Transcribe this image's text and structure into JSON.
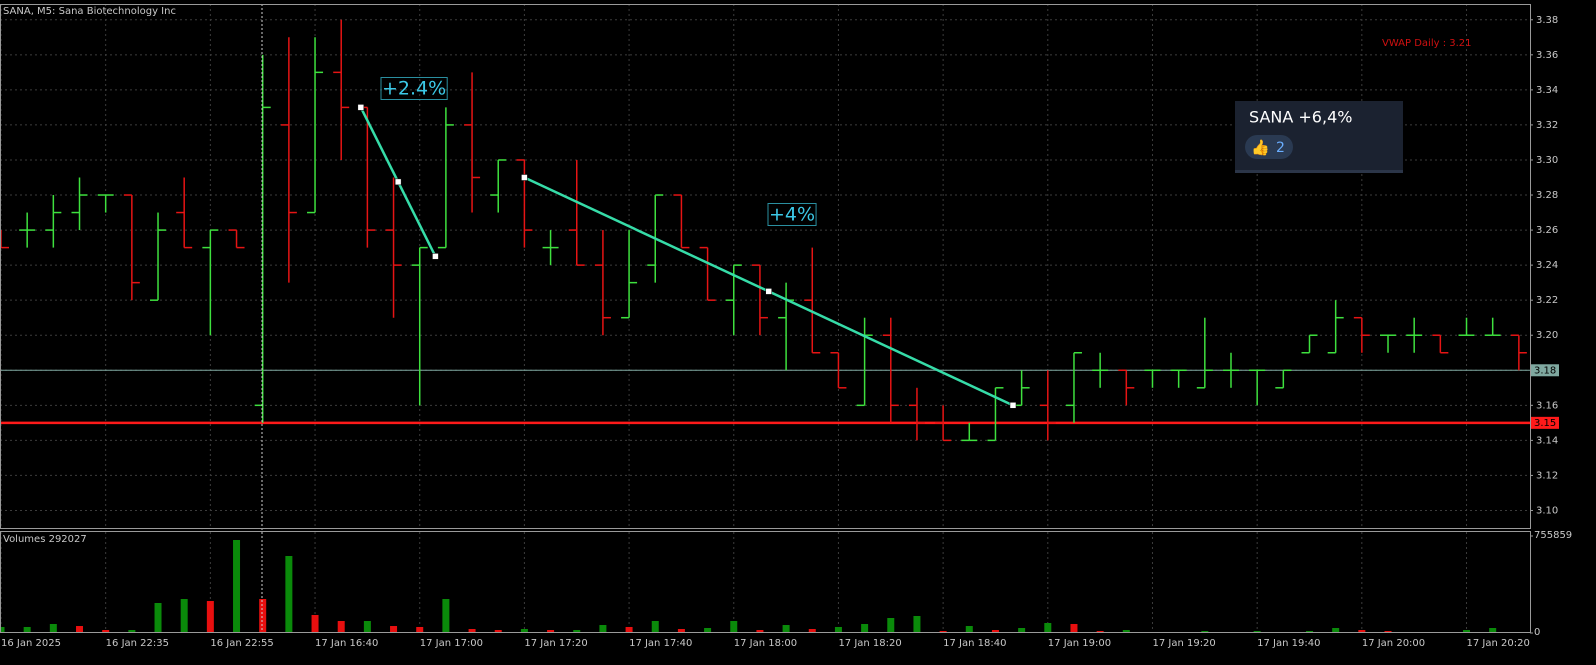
{
  "chart_data": {
    "type": "ohlc",
    "title": "SANA, M5:  Sana Biotechnology Inc",
    "categories": [
      "16 Jan 2025",
      null,
      null,
      null,
      "16 Jan 22:35",
      null,
      null,
      null,
      "16 Jan 22:55",
      null,
      null,
      null,
      "17 Jan 16:40",
      null,
      null,
      null,
      "17 Jan 17:00",
      null,
      null,
      null,
      "17 Jan 17:20",
      null,
      null,
      null,
      "17 Jan 17:40",
      null,
      null,
      null,
      "17 Jan 18:00",
      null,
      null,
      null,
      "17 Jan 18:20",
      null,
      null,
      null,
      "17 Jan 18:40",
      null,
      null,
      null,
      "17 Jan 19:00",
      null,
      null,
      null,
      "17 Jan 19:20",
      null,
      null,
      null,
      "17 Jan 19:40",
      null,
      null,
      null,
      "17 Jan 20:00",
      null,
      null,
      null,
      "17 Jan 20:20",
      null,
      null
    ],
    "open": [
      3.26,
      3.26,
      3.26,
      3.27,
      3.28,
      3.28,
      3.22,
      3.27,
      3.25,
      3.26,
      3.16,
      3.32,
      3.27,
      3.35,
      3.33,
      3.26,
      3.24,
      3.25,
      3.32,
      3.28,
      3.3,
      3.25,
      3.26,
      3.24,
      3.21,
      3.24,
      3.28,
      3.25,
      3.22,
      3.24,
      3.21,
      3.22,
      3.19,
      3.16,
      3.2,
      3.16,
      3.15,
      3.14,
      3.14,
      3.16,
      3.16,
      3.16,
      3.18,
      3.18,
      3.18,
      3.18,
      3.17,
      3.18,
      3.18,
      3.17,
      3.19,
      3.19,
      3.21,
      3.2,
      3.2,
      3.2,
      3.2,
      3.2,
      3.2
    ],
    "high": [
      3.26,
      3.27,
      3.28,
      3.29,
      3.28,
      3.28,
      3.27,
      3.29,
      3.26,
      3.26,
      3.36,
      3.37,
      3.37,
      3.38,
      3.33,
      3.29,
      3.25,
      3.33,
      3.35,
      3.3,
      3.3,
      3.26,
      3.3,
      3.26,
      3.26,
      3.28,
      3.28,
      3.25,
      3.24,
      3.24,
      3.23,
      3.25,
      3.19,
      3.21,
      3.21,
      3.17,
      3.16,
      3.15,
      3.17,
      3.18,
      3.18,
      3.19,
      3.19,
      3.18,
      3.18,
      3.18,
      3.21,
      3.19,
      3.18,
      3.18,
      3.2,
      3.22,
      3.21,
      3.2,
      3.21,
      3.2,
      3.21,
      3.21,
      3.2
    ],
    "low": [
      3.25,
      3.25,
      3.25,
      3.26,
      3.27,
      3.22,
      3.22,
      3.25,
      3.2,
      3.25,
      3.15,
      3.23,
      3.27,
      3.3,
      3.25,
      3.21,
      3.16,
      3.25,
      3.27,
      3.27,
      3.25,
      3.24,
      3.24,
      3.2,
      3.21,
      3.23,
      3.25,
      3.22,
      3.2,
      3.2,
      3.18,
      3.19,
      3.17,
      3.16,
      3.15,
      3.14,
      3.14,
      3.14,
      3.14,
      3.16,
      3.14,
      3.15,
      3.17,
      3.16,
      3.17,
      3.17,
      3.17,
      3.17,
      3.16,
      3.17,
      3.19,
      3.19,
      3.19,
      3.19,
      3.19,
      3.19,
      3.2,
      3.2,
      3.18
    ],
    "close": [
      3.25,
      3.26,
      3.27,
      3.28,
      3.28,
      3.23,
      3.26,
      3.25,
      3.26,
      3.25,
      3.33,
      3.27,
      3.35,
      3.33,
      3.26,
      3.24,
      3.25,
      3.32,
      3.29,
      3.3,
      3.26,
      3.25,
      3.24,
      3.21,
      3.23,
      3.28,
      3.25,
      3.22,
      3.24,
      3.21,
      3.22,
      3.19,
      3.17,
      3.2,
      3.16,
      3.15,
      3.14,
      3.14,
      3.17,
      3.17,
      3.15,
      3.19,
      3.18,
      3.17,
      3.18,
      3.18,
      3.18,
      3.18,
      3.18,
      3.18,
      3.2,
      3.21,
      3.2,
      3.2,
      3.2,
      3.19,
      3.2,
      3.2,
      3.19
    ],
    "up_color": "#3ee03e",
    "down_color": "#e61414",
    "ylim": [
      3.09,
      3.389
    ],
    "yticks": [
      {
        "value": 3.1,
        "label": "3.10"
      },
      3.12,
      3.14,
      3.16,
      3.18,
      {
        "value": 3.2,
        "label": "3.20"
      },
      3.22,
      3.24,
      3.26,
      3.28,
      {
        "value": 3.3,
        "label": "3.30"
      },
      3.32,
      3.34,
      3.36,
      3.38
    ],
    "grid": true,
    "hlines": [
      {
        "value": 3.18,
        "color": "#7fa8a0"
      },
      {
        "value": 3.15,
        "color": "#ff1a1a"
      }
    ],
    "indicator_label": "VWAP Daily : 3.21",
    "trendlines": [
      {
        "x": [
          13.75,
          16.6
        ],
        "y": [
          3.33,
          3.245
        ],
        "label": "+2.4%"
      },
      {
        "x": [
          20,
          38.67
        ],
        "y": [
          3.29,
          3.16
        ],
        "label": "+4%"
      }
    ],
    "trend_color": "#36dca8",
    "volume": {
      "title": "Volumes 292027",
      "values": [
        46800,
        46800,
        70100,
        54500,
        23400,
        23400,
        233800,
        264900,
        249300,
        724700,
        264900,
        600000,
        140300,
        93500,
        93500,
        54500,
        46800,
        264900,
        31200,
        23400,
        31200,
        23400,
        23400,
        62300,
        46800,
        93500,
        31200,
        39000,
        93500,
        23400,
        62300,
        31200,
        46800,
        70100,
        116900,
        132500,
        15600,
        54500,
        23400,
        39000,
        77900,
        70100,
        15600,
        23400,
        7800,
        7800,
        15600,
        7800,
        15600,
        7800,
        15600,
        39000,
        23400,
        15600,
        7800,
        7800,
        23400,
        39000,
        7800
      ],
      "ylim": [
        0,
        755859
      ],
      "yticks": [
        0,
        755859
      ],
      "up_color": "#0a8a0a",
      "down_color": "#e80f0f"
    }
  },
  "popup": {
    "title": "SANA +6,4%",
    "reaction": "👍",
    "count": 2
  }
}
